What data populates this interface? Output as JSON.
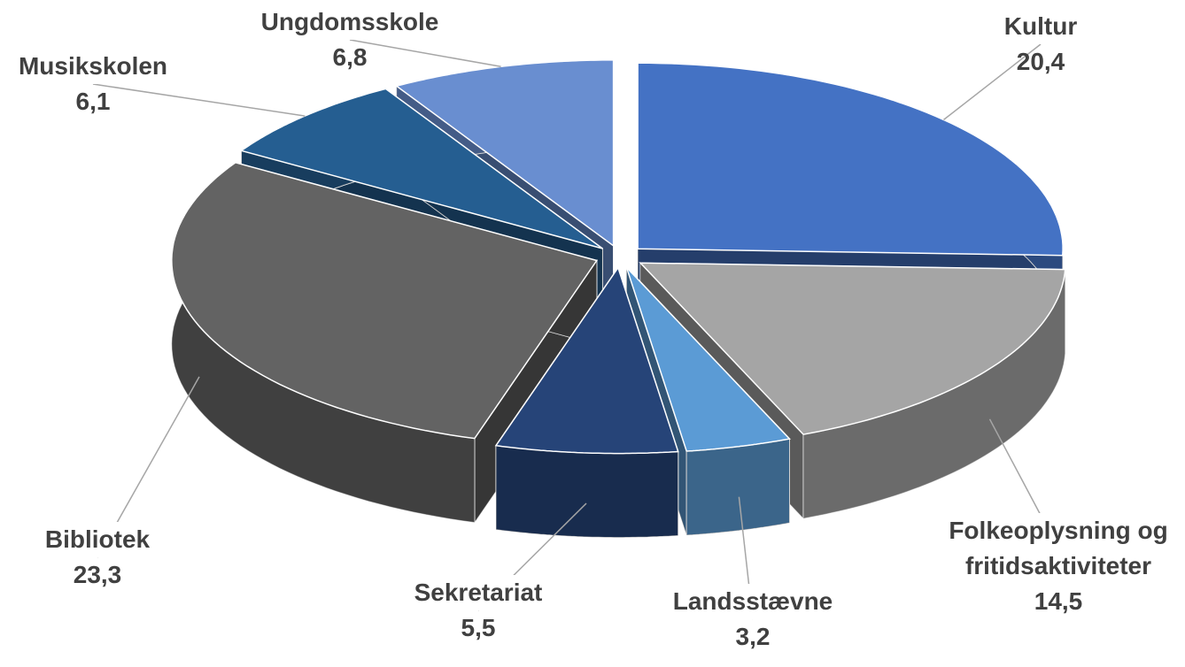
{
  "chart_data": {
    "type": "pie",
    "categories": [
      "Kultur",
      "Folkeoplysning og fritidsaktiviteter",
      "Landsstævne",
      "Sekretariat",
      "Bibliotek",
      "Musikskolen",
      "Ungdomsskole"
    ],
    "values": [
      20.4,
      14.5,
      3.2,
      5.5,
      23.3,
      6.1,
      6.8
    ],
    "value_labels": [
      "20,4",
      "14,5",
      "3,2",
      "5,5",
      "23,3",
      "6,1",
      "6,8"
    ],
    "colors": [
      "#4472c4",
      "#a5a5a5",
      "#5b9bd5",
      "#264478",
      "#636363",
      "#255e91",
      "#698ed0"
    ]
  }
}
